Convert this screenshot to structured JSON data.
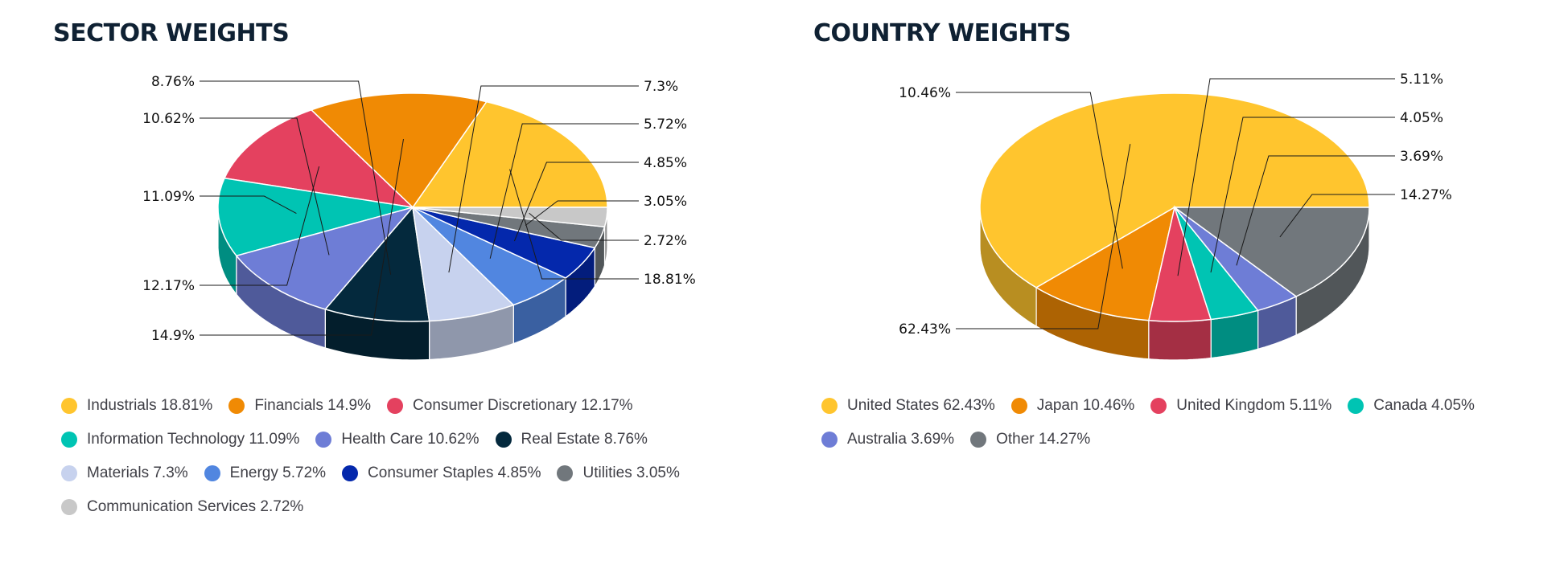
{
  "chart_data": [
    {
      "type": "pie",
      "title": "SECTOR WEIGHTS",
      "legend_position": "bottom",
      "slices": [
        {
          "label": "Industrials",
          "value": 18.81,
          "display": "18.81%",
          "color": "#ffc52e"
        },
        {
          "label": "Financials",
          "value": 14.9,
          "display": "14.9%",
          "color": "#f08a04"
        },
        {
          "label": "Consumer Discretionary",
          "value": 12.17,
          "display": "12.17%",
          "color": "#e4415f"
        },
        {
          "label": "Information Technology",
          "value": 11.09,
          "display": "11.09%",
          "color": "#00c4b3"
        },
        {
          "label": "Health Care",
          "value": 10.62,
          "display": "10.62%",
          "color": "#6e7dd6"
        },
        {
          "label": "Real Estate",
          "value": 8.76,
          "display": "8.76%",
          "color": "#04293d"
        },
        {
          "label": "Materials",
          "value": 7.3,
          "display": "7.3%",
          "color": "#c7d2ee"
        },
        {
          "label": "Energy",
          "value": 5.72,
          "display": "5.72%",
          "color": "#5186e0"
        },
        {
          "label": "Consumer Staples",
          "value": 4.85,
          "display": "4.85%",
          "color": "#0428ac"
        },
        {
          "label": "Utilities",
          "value": 3.05,
          "display": "3.05%",
          "color": "#71777c"
        },
        {
          "label": "Communication Services",
          "value": 2.72,
          "display": "2.72%",
          "color": "#c8c8c8"
        }
      ]
    },
    {
      "type": "pie",
      "title": "COUNTRY WEIGHTS",
      "legend_position": "bottom",
      "slices": [
        {
          "label": "United States",
          "value": 62.43,
          "display": "62.43%",
          "color": "#ffc52e"
        },
        {
          "label": "Japan",
          "value": 10.46,
          "display": "10.46%",
          "color": "#f08a04"
        },
        {
          "label": "United Kingdom",
          "value": 5.11,
          "display": "5.11%",
          "color": "#e4415f"
        },
        {
          "label": "Canada",
          "value": 4.05,
          "display": "4.05%",
          "color": "#00c4b3"
        },
        {
          "label": "Australia",
          "value": 3.69,
          "display": "3.69%",
          "color": "#6e7dd6"
        },
        {
          "label": "Other",
          "value": 14.27,
          "display": "14.27%",
          "color": "#71777c"
        }
      ]
    }
  ]
}
